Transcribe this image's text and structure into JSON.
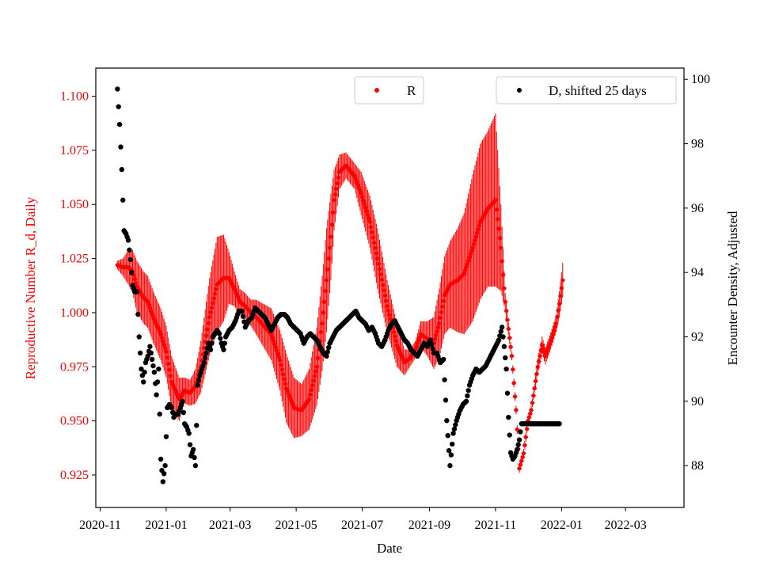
{
  "chart_data": {
    "type": "scatter",
    "title": "",
    "xlabel": "Date",
    "ylabel_left": "Reproductive Number R_d, Daily",
    "ylabel_right": "Encounter Density, Adjusted",
    "x_tick_labels": [
      "2020-11",
      "2021-01",
      "2021-03",
      "2021-05",
      "2021-07",
      "2021-09",
      "2021-11",
      "2022-01",
      "2022-03"
    ],
    "x_tick_dates": [
      "2020-11-01",
      "2021-01-01",
      "2021-03-01",
      "2021-05-01",
      "2021-07-01",
      "2021-09-01",
      "2021-11-01",
      "2022-01-01",
      "2022-03-01"
    ],
    "xlim": [
      "2020-10-28",
      "2022-04-24"
    ],
    "left_ylim": [
      0.91,
      1.113
    ],
    "left_ticks": [
      0.925,
      0.95,
      0.975,
      1.0,
      1.025,
      1.05,
      1.075,
      1.1
    ],
    "left_tick_labels": [
      "0.925",
      "0.950",
      "0.975",
      "1.000",
      "1.025",
      "1.050",
      "1.075",
      "1.100"
    ],
    "right_ylim": [
      86.7,
      100.35
    ],
    "right_ticks": [
      88,
      90,
      92,
      94,
      96,
      98,
      100
    ],
    "right_tick_labels": [
      "88",
      "90",
      "92",
      "94",
      "96",
      "98",
      "100"
    ],
    "legend": [
      {
        "label": "R",
        "position": "top-center",
        "color": "#ff0000"
      },
      {
        "label": "D, shifted 25 days",
        "position": "top-right",
        "color": "#000000"
      }
    ],
    "series": [
      {
        "name": "R",
        "axis": "left",
        "color": "#ff0000",
        "marker": "dot-with-errorbars",
        "keyframes": {
          "day": [
            0,
            5,
            10,
            14,
            18,
            24,
            28,
            33,
            40,
            45,
            50,
            57,
            62,
            67,
            72,
            77,
            85,
            92,
            98,
            103,
            108,
            113,
            118,
            123,
            128,
            135,
            142,
            150,
            156,
            163,
            170,
            177,
            184,
            189,
            193,
            197,
            200,
            205,
            211,
            219,
            225,
            233,
            240,
            249,
            258,
            265,
            270,
            275,
            280,
            286,
            292,
            297,
            302,
            307,
            314,
            320,
            328,
            335,
            342,
            349,
            354,
            358,
            364,
            368,
            371,
            375,
            379,
            382,
            385,
            388,
            392,
            395,
            398,
            402,
            405,
            408,
            411
          ],
          "r": [
            1.022,
            1.021,
            1.021,
            1.019,
            1.012,
            1.007,
            1.005,
            0.998,
            0.99,
            0.982,
            0.968,
            0.96,
            0.964,
            0.963,
            0.966,
            0.975,
            0.998,
            1.013,
            1.016,
            1.016,
            1.011,
            1.005,
            1.003,
            1.0,
            0.998,
            0.994,
            0.99,
            0.978,
            0.965,
            0.956,
            0.955,
            0.96,
            0.975,
            0.995,
            1.015,
            1.035,
            1.052,
            1.065,
            1.068,
            1.063,
            1.055,
            1.042,
            1.025,
            1.003,
            0.985,
            0.977,
            0.979,
            0.983,
            0.99,
            0.988,
            0.986,
            0.995,
            1.008,
            1.013,
            1.015,
            1.018,
            1.03,
            1.042,
            1.048,
            1.052,
            1.03,
            1.005,
            0.98,
            0.955,
            0.928,
            0.935,
            0.95,
            0.955,
            0.965,
            0.975,
            0.985,
            0.98,
            0.984,
            0.99,
            0.995,
            1.004,
            1.015
          ],
          "err": [
            0.002,
            0.004,
            0.008,
            0.01,
            0.012,
            0.012,
            0.012,
            0.012,
            0.012,
            0.012,
            0.012,
            0.01,
            0.006,
            0.006,
            0.008,
            0.012,
            0.018,
            0.022,
            0.02,
            0.012,
            0.008,
            0.006,
            0.006,
            0.006,
            0.008,
            0.01,
            0.012,
            0.014,
            0.016,
            0.014,
            0.012,
            0.014,
            0.018,
            0.022,
            0.024,
            0.02,
            0.014,
            0.008,
            0.006,
            0.006,
            0.01,
            0.012,
            0.014,
            0.012,
            0.01,
            0.006,
            0.004,
            0.004,
            0.006,
            0.008,
            0.012,
            0.016,
            0.018,
            0.02,
            0.024,
            0.028,
            0.034,
            0.036,
            0.036,
            0.04,
            0.02,
            0.004,
            0.002,
            0.002,
            0.002,
            0.002,
            0.002,
            0.002,
            0.002,
            0.004,
            0.004,
            0.004,
            0.004,
            0.004,
            0.004,
            0.006,
            0.008
          ]
        }
      },
      {
        "name": "D, shifted 25 days",
        "axis": "right",
        "color": "#000000",
        "marker": "dot",
        "keyframes": {
          "day": [
            0,
            2,
            4,
            6,
            8,
            10,
            12,
            14,
            16,
            18,
            20,
            22,
            24,
            26,
            28,
            30,
            32,
            34,
            36,
            38,
            40,
            42,
            44,
            46,
            48,
            50,
            52,
            54,
            56,
            58,
            60,
            62,
            64,
            66,
            68,
            70,
            72,
            74,
            76,
            78,
            80,
            82,
            84,
            86,
            88,
            90,
            92,
            94,
            96,
            98,
            100,
            103,
            106,
            109,
            112,
            115,
            118,
            121,
            124,
            127,
            130,
            133,
            136,
            139,
            142,
            145,
            148,
            151,
            154,
            157,
            160,
            163,
            166,
            169,
            172,
            175,
            178,
            181,
            184,
            187,
            190,
            193,
            196,
            199,
            202,
            205,
            208,
            211,
            214,
            217,
            220,
            223,
            226,
            229,
            232,
            235,
            238,
            241,
            244,
            247,
            250,
            253,
            256,
            259,
            262,
            265,
            268,
            271,
            274,
            277,
            280,
            283,
            286,
            289,
            292,
            295,
            298,
            301,
            304,
            307,
            310,
            313,
            316,
            319,
            322,
            325,
            328,
            331,
            334,
            337,
            340,
            343,
            346,
            349,
            352,
            355,
            357,
            359,
            361,
            363,
            365,
            367,
            369,
            371,
            373,
            375,
            377,
            379,
            381,
            384,
            387,
            390,
            393,
            396,
            399,
            402,
            405,
            408
          ],
          "d": [
            99.7,
            98.6,
            97.2,
            95.3,
            95.2,
            95.0,
            94.4,
            93.6,
            93.4,
            93.4,
            92.0,
            91.0,
            90.6,
            91.2,
            91.4,
            91.7,
            91.3,
            90.9,
            90.2,
            91.0,
            88.2,
            87.5,
            88.0,
            89.8,
            89.9,
            89.8,
            89.5,
            89.6,
            89.6,
            89.8,
            90.0,
            89.3,
            89.2,
            89.0,
            88.3,
            88.5,
            88.0,
            90.5,
            90.8,
            91.0,
            91.2,
            91.5,
            91.8,
            91.6,
            92.0,
            92.1,
            92.2,
            92.1,
            91.8,
            91.6,
            92.0,
            92.2,
            92.3,
            92.5,
            92.8,
            92.8,
            92.3,
            92.5,
            92.6,
            92.9,
            92.8,
            92.7,
            92.6,
            92.4,
            92.2,
            92.4,
            92.6,
            92.7,
            92.7,
            92.6,
            92.4,
            92.3,
            92.2,
            92.1,
            91.8,
            92.0,
            92.1,
            92.0,
            91.9,
            91.7,
            91.5,
            91.4,
            91.8,
            92.0,
            92.2,
            92.3,
            92.4,
            92.5,
            92.6,
            92.7,
            92.8,
            92.6,
            92.5,
            92.4,
            92.2,
            92.3,
            92.1,
            91.8,
            91.7,
            91.9,
            92.2,
            92.4,
            92.5,
            92.3,
            92.1,
            91.9,
            91.8,
            91.6,
            91.5,
            91.4,
            91.6,
            91.8,
            91.7,
            91.9,
            91.5,
            91.5,
            91.2,
            91.3,
            89.4,
            88.0,
            89.0,
            89.4,
            89.7,
            89.9,
            90.0,
            90.5,
            90.8,
            91.0,
            90.9,
            91.0,
            91.1,
            91.3,
            91.5,
            91.7,
            91.9,
            92.3,
            91.7,
            91.0,
            89.5,
            88.4,
            88.2,
            88.3,
            88.5,
            88.8,
            89.3,
            89.3,
            89.3,
            89.3,
            89.3,
            89.3,
            89.3,
            89.3,
            89.3,
            89.3,
            89.3,
            89.3,
            89.3,
            89.3,
            89.3,
            89.3
          ]
        }
      }
    ]
  }
}
